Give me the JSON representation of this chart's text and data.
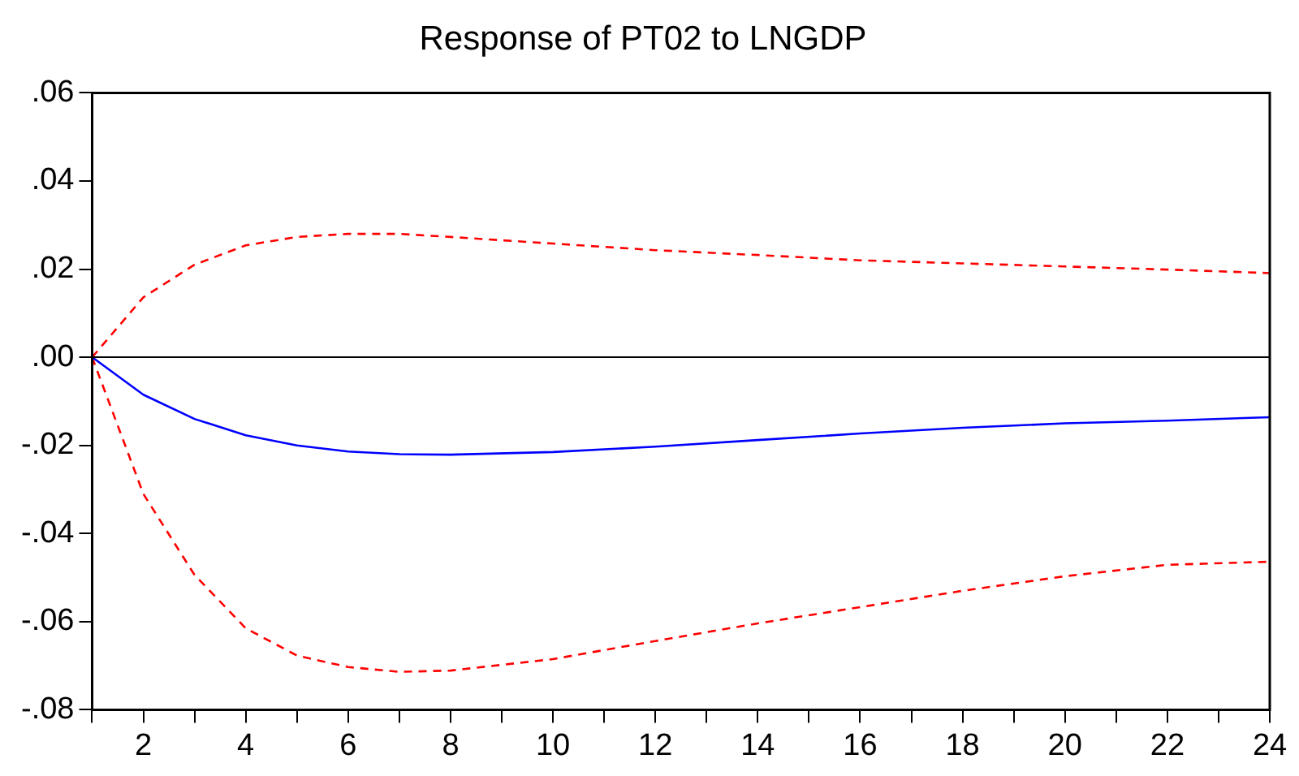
{
  "chart_data": {
    "type": "line",
    "title": "Response of PT02 to LNGDP",
    "x": [
      1,
      2,
      3,
      4,
      5,
      6,
      7,
      8,
      10,
      12,
      14,
      16,
      18,
      20,
      22,
      24
    ],
    "series": [
      {
        "color": "#0000ff",
        "line_style": "solid",
        "values": [
          0,
          -0.0085,
          -0.014,
          -0.0177,
          -0.02,
          -0.0214,
          -0.022,
          -0.0221,
          -0.0215,
          -0.0203,
          -0.0188,
          -0.0173,
          -0.016,
          -0.015,
          -0.0144,
          -0.0136
        ]
      },
      {
        "color": "#ff0000",
        "line_style": "dashed",
        "values": [
          0,
          0.0136,
          0.021,
          0.0254,
          0.0273,
          0.028,
          0.028,
          0.0273,
          0.0258,
          0.0243,
          0.0232,
          0.022,
          0.0213,
          0.0206,
          0.0199,
          0.0191
        ]
      },
      {
        "color": "#ff0000",
        "line_style": "dashed",
        "values": [
          0,
          -0.031,
          -0.0494,
          -0.0615,
          -0.0677,
          -0.0703,
          -0.0714,
          -0.0711,
          -0.0685,
          -0.0644,
          -0.0604,
          -0.0567,
          -0.053,
          -0.0497,
          -0.0471,
          -0.0464
        ]
      }
    ],
    "xlim": [
      1,
      24
    ],
    "xticks": [
      {
        "value": 1,
        "label": null
      },
      2,
      {
        "value": 3,
        "label": null
      },
      4,
      {
        "value": 5,
        "label": null
      },
      6,
      {
        "value": 7,
        "label": null
      },
      8,
      {
        "value": 9,
        "label": null
      },
      10,
      {
        "value": 11,
        "label": null
      },
      12,
      {
        "value": 13,
        "label": null
      },
      14,
      {
        "value": 15,
        "label": null
      },
      16,
      {
        "value": 17,
        "label": null
      },
      18,
      {
        "value": 19,
        "label": null
      },
      20,
      {
        "value": 21,
        "label": null
      },
      22,
      {
        "value": 23,
        "label": null
      },
      24
    ],
    "ylim": [
      -0.08,
      0.06
    ],
    "yticks": [
      {
        "value": -0.08,
        "label": "-.08"
      },
      {
        "value": -0.06,
        "label": "-.06"
      },
      {
        "value": -0.04,
        "label": "-.04"
      },
      {
        "value": -0.02,
        "label": "-.02"
      },
      {
        "value": 0,
        "label": ".00"
      },
      {
        "value": 0.02,
        "label": ".02"
      },
      {
        "value": 0.04,
        "label": ".04"
      },
      {
        "value": 0.06,
        "label": ".06"
      }
    ],
    "ref_lines": [
      {
        "axis": "y",
        "value": 0,
        "color": "#000000",
        "line_style": "solid"
      }
    ],
    "grid": false,
    "legend": false,
    "marker": "none"
  }
}
